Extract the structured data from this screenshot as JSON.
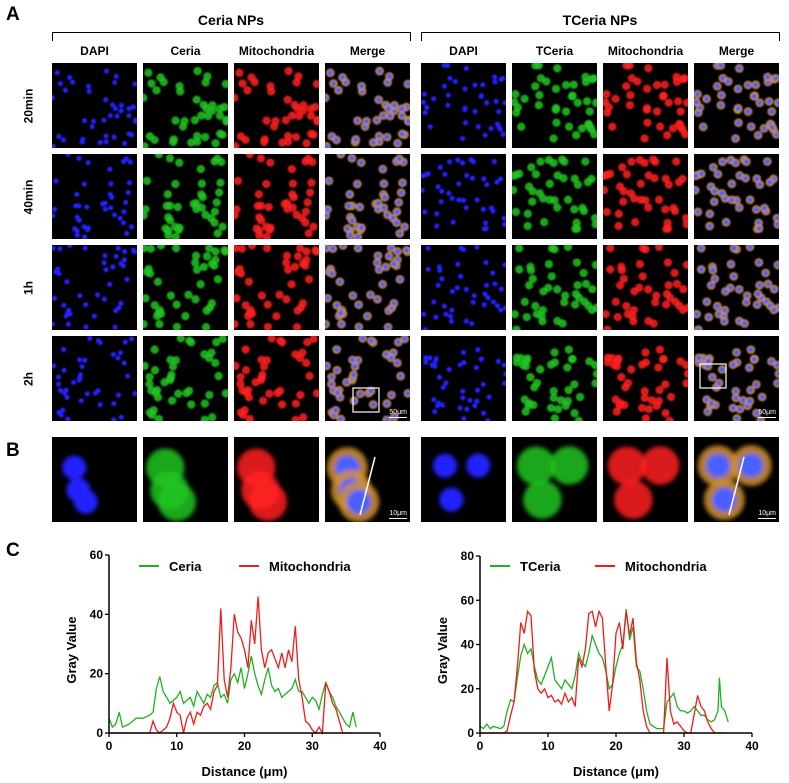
{
  "panel_letters": [
    "A",
    "B",
    "C"
  ],
  "groups": [
    {
      "title": "Ceria  NPs",
      "columns": [
        "DAPI",
        "Ceria",
        "Mitochondria",
        "Merge"
      ]
    },
    {
      "title": "TCeria NPs",
      "columns": [
        "DAPI",
        "TCeria",
        "Mitochondria",
        "Merge"
      ]
    }
  ],
  "rows": [
    "20min",
    "40min",
    "1h",
    "2h"
  ],
  "scale_bars": {
    "overview": "50μm",
    "zoom": "10μm"
  },
  "channel_colors": {
    "DAPI": "#1a1aff",
    "Ceria": "#1fc01f",
    "Mitochondria": "#ff1a1a",
    "Merge": "#e0a040"
  },
  "chart_data": [
    {
      "type": "line",
      "xlabel": "Distance (μm)",
      "ylabel": "Gray Value",
      "xlim": [
        0,
        40
      ],
      "ylim": [
        0,
        60
      ],
      "xticks": [
        0,
        10,
        20,
        30,
        40
      ],
      "yticks": [
        0,
        20,
        40,
        60
      ],
      "legend": "top",
      "grid": false,
      "series": [
        {
          "name": "Ceria",
          "color": "#22b022",
          "x": [
            0,
            0.5,
            1,
            1.5,
            2,
            3,
            4,
            5,
            6,
            6.5,
            7,
            7.5,
            8,
            8.5,
            9,
            10,
            10.5,
            11,
            12,
            12.5,
            13,
            14,
            14.5,
            15,
            15.5,
            16,
            16.5,
            17,
            17.5,
            18,
            18.5,
            19,
            19.5,
            20,
            20.5,
            21,
            21.5,
            22,
            22.5,
            23,
            23.5,
            24,
            24.5,
            25,
            25.5,
            26,
            26.5,
            27,
            27.5,
            28,
            28.5,
            29,
            29.5,
            30,
            30.5,
            31,
            31.5,
            32,
            32.5,
            33,
            33.5,
            34,
            34.5,
            35,
            35.5,
            36,
            36.5
          ],
          "y": [
            5,
            2,
            3,
            7,
            2,
            3,
            5,
            5,
            6,
            7,
            15,
            19,
            14,
            12,
            10,
            12,
            14,
            10,
            12,
            9,
            14,
            10,
            13,
            12,
            16,
            17,
            12,
            13,
            10,
            18,
            20,
            17,
            22,
            15,
            20,
            26,
            20,
            16,
            13,
            18,
            22,
            16,
            14,
            15,
            12,
            13,
            14,
            15,
            18,
            14,
            14,
            12,
            10,
            12,
            11,
            8,
            13,
            17,
            14,
            12,
            9,
            7,
            5,
            3,
            2,
            7,
            2
          ]
        },
        {
          "name": "Mitochondria",
          "color": "#ee1c1c",
          "x": [
            0,
            6,
            6.5,
            7,
            7.5,
            8,
            8.5,
            9,
            9.5,
            10,
            10.5,
            11,
            11.5,
            12,
            12.5,
            13,
            13.5,
            14,
            14.5,
            15,
            15.5,
            16,
            16.5,
            17,
            17.5,
            18,
            18.5,
            19,
            19.5,
            20,
            20.5,
            21,
            21.5,
            22,
            22.5,
            23,
            23.5,
            24,
            24.5,
            25,
            25.5,
            26,
            26.5,
            27,
            27.5,
            28,
            28.5,
            29,
            29.5,
            30,
            30.5,
            31,
            31.5,
            32,
            32.5,
            33,
            33.5,
            34,
            34.5,
            36
          ],
          "y": [
            0,
            0,
            4,
            1,
            0,
            1,
            2,
            5,
            10,
            7,
            6,
            0,
            5,
            7,
            3,
            7,
            6,
            9,
            10,
            8,
            14,
            16,
            42,
            18,
            12,
            22,
            40,
            34,
            32,
            28,
            22,
            38,
            30,
            46,
            28,
            22,
            27,
            28,
            25,
            22,
            27,
            22,
            28,
            24,
            36,
            18,
            12,
            4,
            3,
            1,
            0,
            2,
            0,
            17,
            14,
            10,
            8,
            4,
            0,
            0
          ]
        }
      ]
    },
    {
      "type": "line",
      "xlabel": "Distance (μm)",
      "ylabel": "Gray Value",
      "xlim": [
        0,
        40
      ],
      "ylim": [
        0,
        80
      ],
      "xticks": [
        0,
        10,
        20,
        30,
        40
      ],
      "yticks": [
        0,
        20,
        40,
        60,
        80
      ],
      "legend": "top",
      "grid": false,
      "series": [
        {
          "name": "TCeria",
          "color": "#22b022",
          "x": [
            0,
            0.5,
            1,
            1.5,
            2,
            3,
            3.5,
            4,
            4.5,
            5,
            5.5,
            6,
            6.5,
            7,
            7.5,
            8,
            8.5,
            9,
            9.5,
            10,
            10.5,
            11,
            11.5,
            12,
            12.5,
            13,
            13.5,
            14,
            14.5,
            15,
            15.5,
            16,
            16.5,
            17,
            17.5,
            18,
            18.5,
            19,
            19.5,
            20,
            20.5,
            21,
            21.5,
            22,
            22.5,
            23,
            23.5,
            24,
            24.5,
            25,
            25.5,
            26,
            27,
            27.5,
            28,
            28.5,
            29,
            29.5,
            30,
            30.5,
            31,
            31.5,
            32,
            32.5,
            33,
            33.5,
            34,
            34.5,
            35,
            35.2,
            35.5,
            36,
            36.5
          ],
          "y": [
            3,
            2,
            4,
            2,
            3,
            2,
            3,
            10,
            15,
            14,
            25,
            35,
            40,
            36,
            38,
            30,
            24,
            22,
            26,
            30,
            34,
            24,
            22,
            20,
            24,
            22,
            20,
            26,
            36,
            32,
            30,
            36,
            44,
            40,
            36,
            34,
            28,
            20,
            22,
            30,
            36,
            40,
            56,
            42,
            48,
            30,
            28,
            20,
            10,
            4,
            3,
            2,
            2,
            14,
            16,
            18,
            12,
            10,
            10,
            9,
            10,
            12,
            10,
            8,
            8,
            6,
            5,
            6,
            10,
            25,
            12,
            10,
            5
          ]
        },
        {
          "name": "Mitochondria",
          "color": "#ee1c1c",
          "x": [
            0,
            3.5,
            4,
            4.5,
            5,
            5.5,
            6,
            6.5,
            7,
            7.5,
            8,
            8.5,
            9,
            9.5,
            10,
            10.5,
            11,
            11.5,
            12,
            12.5,
            13,
            13.5,
            14,
            14.5,
            15,
            15.5,
            16,
            16.5,
            17,
            17.5,
            18,
            18.5,
            19,
            19.5,
            20,
            20.5,
            21,
            21.5,
            22,
            22.5,
            23,
            23.5,
            24,
            24.5,
            25,
            27,
            27.5,
            28,
            28.5,
            29,
            29.5,
            30,
            30.5,
            31,
            32,
            32.5,
            33,
            33.5,
            34,
            34.5,
            36
          ],
          "y": [
            0,
            0,
            1,
            8,
            14,
            30,
            50,
            45,
            55,
            53,
            28,
            20,
            18,
            20,
            16,
            17,
            14,
            15,
            13,
            18,
            14,
            16,
            12,
            34,
            30,
            38,
            54,
            55,
            48,
            55,
            52,
            30,
            10,
            22,
            45,
            50,
            38,
            55,
            44,
            52,
            32,
            24,
            10,
            3,
            0,
            0,
            34,
            10,
            4,
            5,
            3,
            1,
            0,
            0,
            17,
            12,
            10,
            5,
            2,
            0,
            0
          ]
        }
      ]
    }
  ]
}
